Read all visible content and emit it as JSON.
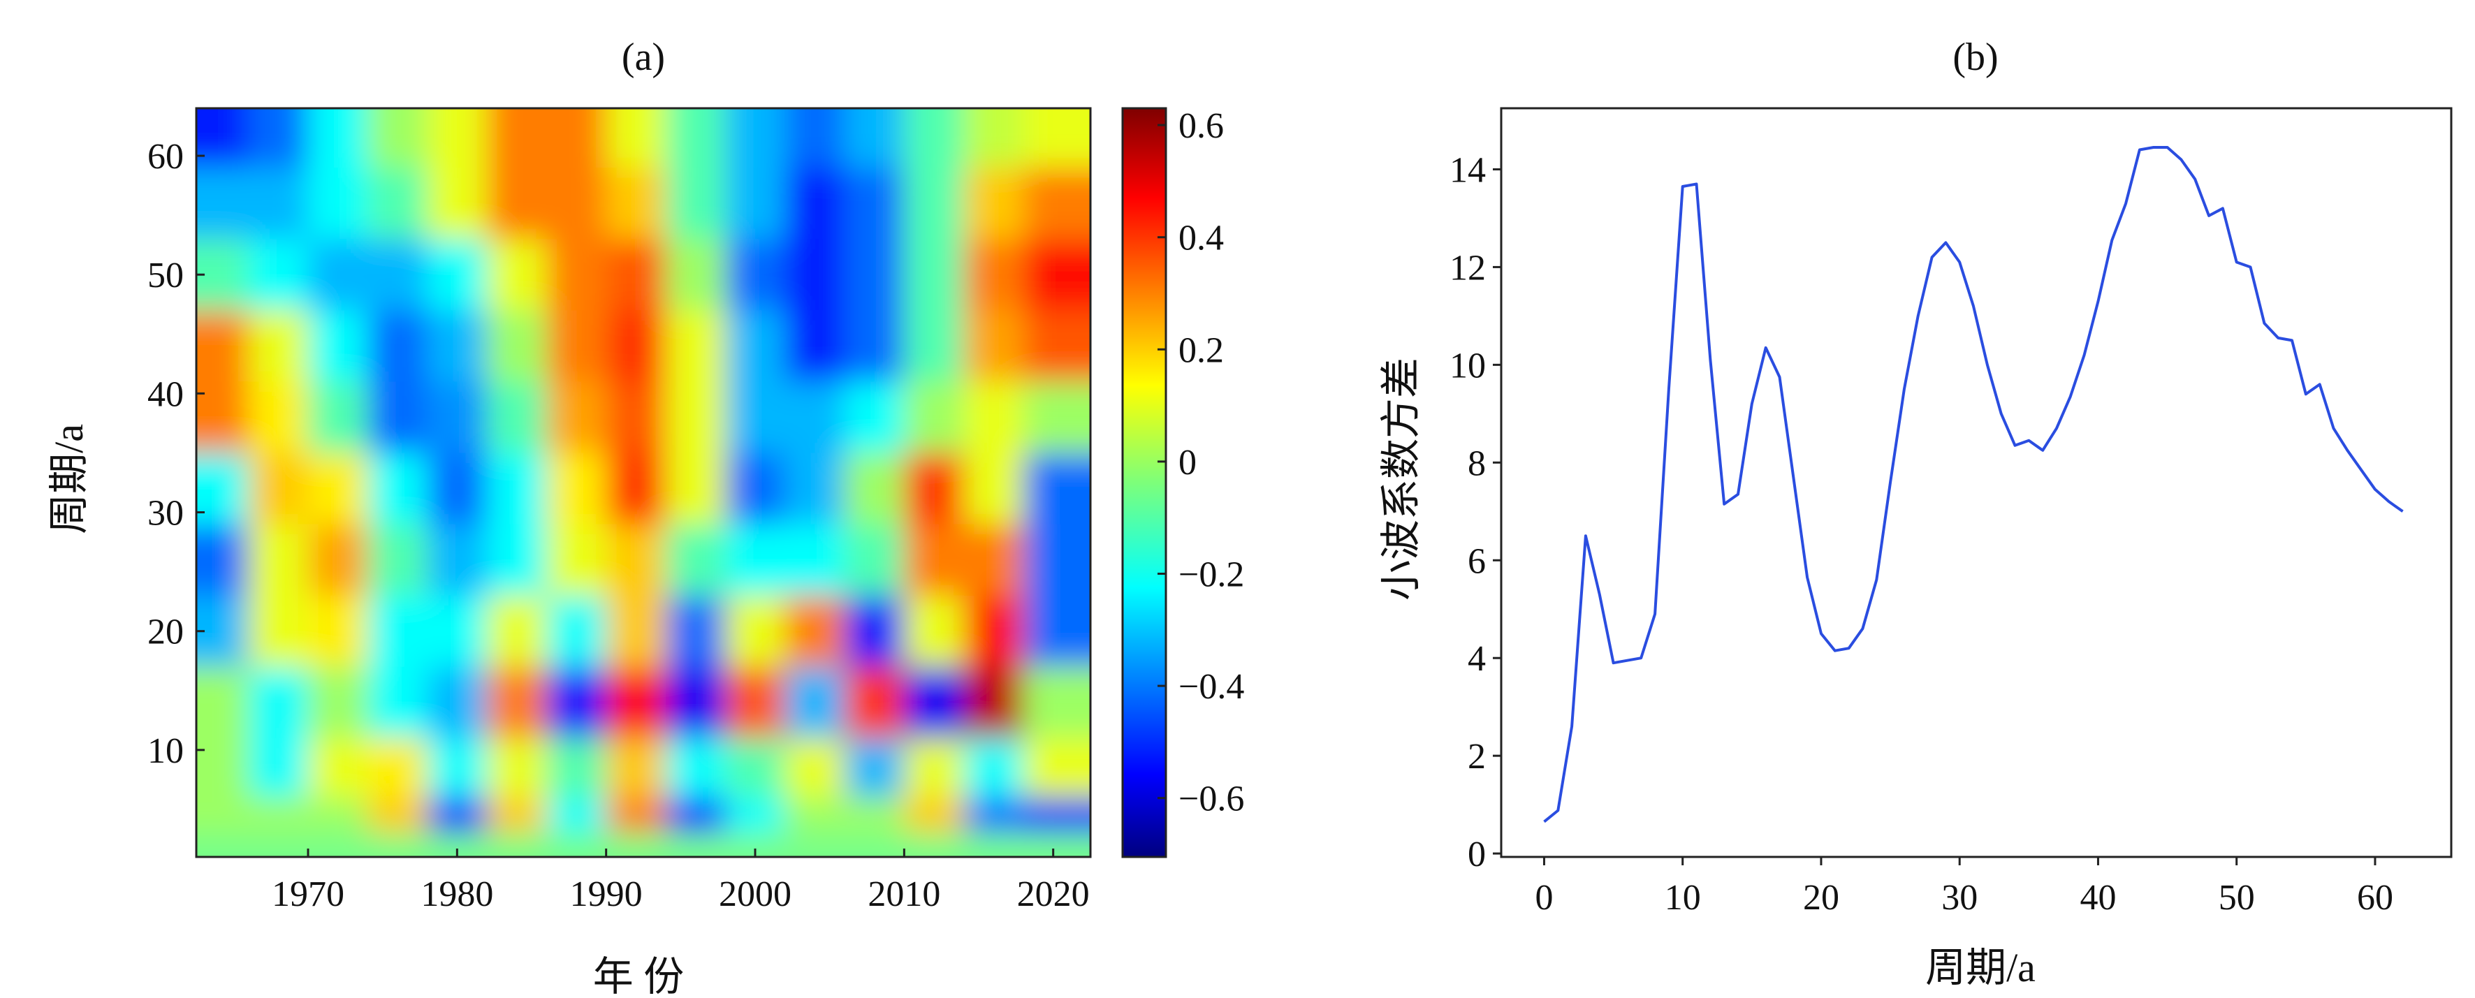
{
  "chart_data": [
    {
      "type": "heatmap",
      "title": "(a)",
      "xlabel": "年 份",
      "ylabel": "周期/a",
      "xlim": [
        1962.5,
        2022.5
      ],
      "ylim": [
        1,
        64
      ],
      "xticks": [
        1970,
        1980,
        1990,
        2000,
        2010,
        2020
      ],
      "yticks": [
        10,
        20,
        30,
        40,
        50,
        60
      ],
      "x": [
        1964,
        1968,
        1972,
        1976,
        1980,
        1984,
        1988,
        1992,
        1996,
        2000,
        2004,
        2008,
        2012,
        2016,
        2020
      ],
      "y": [
        62,
        56,
        50,
        44,
        38,
        32,
        26,
        20,
        14,
        8,
        4,
        2
      ],
      "z": [
        [
          -0.5,
          -0.4,
          -0.2,
          0,
          0.1,
          0.3,
          0.3,
          0.1,
          -0.1,
          -0.3,
          -0.4,
          -0.3,
          -0.1,
          0.05,
          0.1
        ],
        [
          -0.3,
          -0.3,
          -0.2,
          -0.1,
          0.1,
          0.3,
          0.3,
          0.2,
          -0.1,
          -0.3,
          -0.5,
          -0.4,
          -0.1,
          0.2,
          0.3
        ],
        [
          -0.1,
          -0.2,
          -0.3,
          -0.3,
          -0.2,
          0.1,
          0.3,
          0.35,
          0,
          -0.4,
          -0.5,
          -0.4,
          -0.1,
          0.3,
          0.45
        ],
        [
          0.3,
          0.1,
          -0.2,
          -0.4,
          -0.3,
          0,
          0.3,
          0.4,
          0.1,
          -0.3,
          -0.5,
          -0.4,
          -0.1,
          0.25,
          0.35
        ],
        [
          0.3,
          0.15,
          -0.1,
          -0.4,
          -0.35,
          -0.1,
          0.25,
          0.35,
          0.1,
          -0.3,
          -0.3,
          -0.2,
          0,
          0.1,
          0
        ],
        [
          -0.2,
          0.2,
          0.15,
          -0.2,
          -0.4,
          -0.2,
          0.15,
          0.4,
          0.1,
          -0.4,
          -0.3,
          0,
          0.4,
          0.1,
          -0.4
        ],
        [
          -0.4,
          0.1,
          0.25,
          -0.1,
          -0.3,
          -0.2,
          0.1,
          0.2,
          -0.1,
          -0.2,
          -0.2,
          -0.1,
          0.3,
          0.3,
          -0.4
        ],
        [
          -0.3,
          0.1,
          0.15,
          -0.2,
          -0.2,
          0.1,
          -0.2,
          0.2,
          -0.4,
          0.1,
          0.3,
          -0.5,
          0.1,
          0.45,
          -0.4
        ],
        [
          0,
          -0.2,
          0,
          -0.2,
          -0.3,
          0.3,
          -0.5,
          0.45,
          -0.55,
          0.35,
          -0.3,
          0.4,
          -0.55,
          0.55,
          0
        ],
        [
          0,
          -0.2,
          0.1,
          0.15,
          -0.2,
          0.1,
          -0.1,
          0.2,
          -0.2,
          -0.1,
          0.1,
          -0.3,
          0.1,
          -0.2,
          0.1
        ],
        [
          0,
          0,
          0,
          0.2,
          -0.5,
          0.2,
          -0.2,
          0.3,
          -0.5,
          -0.2,
          0,
          0,
          0.2,
          -0.4,
          -0.5
        ],
        [
          -0.05,
          -0.05,
          -0.05,
          -0.05,
          -0.05,
          -0.05,
          -0.05,
          -0.05,
          -0.05,
          -0.05,
          -0.05,
          -0.05,
          -0.05,
          -0.05,
          -0.05
        ]
      ],
      "colorbar": {
        "range": [
          -0.705,
          0.63
        ],
        "ticks": [
          0.6,
          0.4,
          0.2,
          0,
          -0.2,
          -0.4,
          -0.6
        ],
        "tick_labels": [
          "0.6",
          "0.4",
          "0.2",
          "0",
          "−0.2",
          "−0.4",
          "−0.6"
        ],
        "colormap": "jet"
      }
    },
    {
      "type": "line",
      "title": "(b)",
      "xlabel": "周期/a",
      "ylabel": "小波系数方差",
      "xlim": [
        -3.1,
        65.5
      ],
      "ylim": [
        -0.07,
        15.25
      ],
      "xticks": [
        0,
        10,
        20,
        30,
        40,
        50,
        60
      ],
      "yticks": [
        0,
        2,
        4,
        6,
        8,
        10,
        12,
        14
      ],
      "line_color": "#2a4de0",
      "x": [
        0,
        1,
        2,
        3,
        4,
        5,
        6,
        7,
        8,
        9,
        10,
        11,
        12,
        13,
        14,
        15,
        16,
        17,
        18,
        19,
        20,
        21,
        22,
        23,
        24,
        25,
        26,
        27,
        28,
        29,
        30,
        31,
        32,
        33,
        34,
        35,
        36,
        37,
        38,
        39,
        40,
        41,
        42,
        43,
        44,
        45,
        46,
        47,
        48,
        49,
        50,
        51,
        52,
        53,
        54,
        55,
        56,
        57,
        58,
        59,
        60,
        61,
        62
      ],
      "y": [
        0.65,
        0.88,
        2.6,
        6.5,
        5.3,
        3.9,
        3.95,
        4.0,
        4.9,
        9.5,
        13.65,
        13.7,
        10.1,
        7.15,
        7.35,
        9.2,
        10.35,
        9.75,
        7.7,
        5.65,
        4.5,
        4.15,
        4.2,
        4.6,
        5.6,
        7.6,
        9.5,
        11.0,
        12.2,
        12.5,
        12.1,
        11.2,
        10.0,
        9.0,
        8.35,
        8.45,
        8.25,
        8.7,
        9.35,
        10.2,
        11.3,
        12.55,
        13.3,
        14.4,
        14.45,
        14.45,
        14.2,
        13.8,
        13.05,
        13.2,
        12.1,
        12.0,
        10.85,
        10.55,
        10.5,
        9.4,
        9.6,
        8.7,
        8.25,
        7.85,
        7.45,
        7.2,
        7.0
      ]
    }
  ]
}
